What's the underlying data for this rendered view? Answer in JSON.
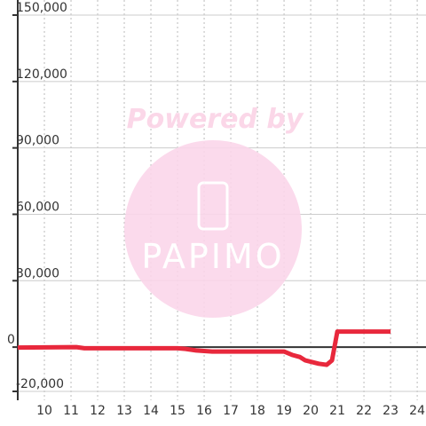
{
  "chart_data": {
    "type": "line",
    "x": [
      9,
      11.2,
      11.5,
      15,
      15.3,
      15.7,
      16.3,
      19,
      19.3,
      19.6,
      19.8,
      20.3,
      20.6,
      20.8,
      21,
      23
    ],
    "series": [
      {
        "color": "#e8283c",
        "values": [
          -200,
          0,
          -500,
          -500,
          -800,
          -1500,
          -2000,
          -2000,
          -3500,
          -4500,
          -6000,
          -7500,
          -8000,
          -6000,
          7000,
          7000
        ]
      }
    ],
    "xlim": [
      9,
      24.33
    ],
    "xticks": [
      10,
      11,
      12,
      13,
      14,
      15,
      16,
      17,
      18,
      19,
      20,
      21,
      22,
      23,
      24
    ],
    "ylim": [
      -20000,
      150000
    ],
    "yticks": [
      {
        "value": -20000,
        "label": "-20,000"
      },
      0,
      {
        "value": 30000,
        "label": "30,000"
      },
      {
        "value": 60000,
        "label": "60,000"
      },
      {
        "value": 90000,
        "label": "90,000"
      },
      {
        "value": 120000,
        "label": "120,000"
      },
      {
        "value": 150000,
        "label": "150,000"
      }
    ],
    "grid": true
  },
  "watermark": {
    "text": "Powered by",
    "logo": "PAPIMO"
  }
}
